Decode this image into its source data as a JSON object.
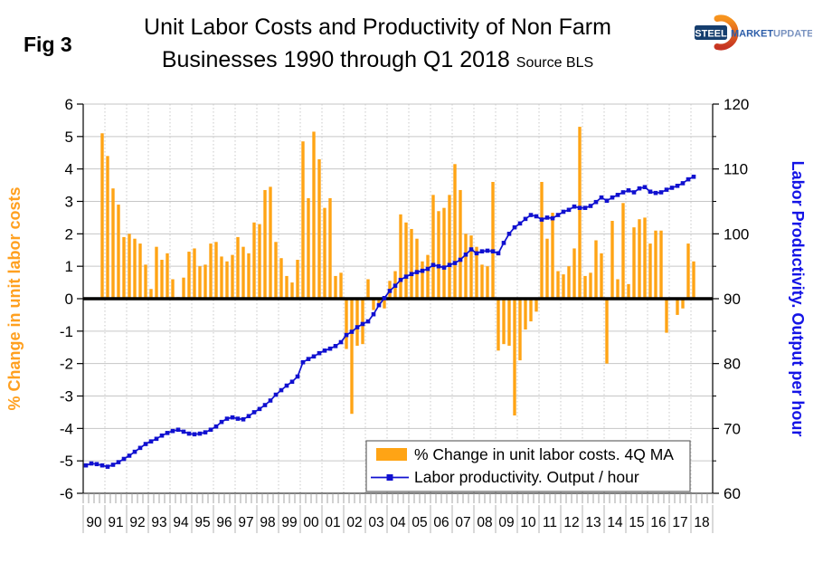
{
  "figure_label": "Fig 3",
  "title_line1": "Unit Labor Costs and Productivity of Non Farm",
  "title_line2": "Businesses 1990 through Q1 2018",
  "source_note": "Source BLS",
  "logo": {
    "steel": "STEEL",
    "market": "MARKET ",
    "update": "UPDATE"
  },
  "chart_data": {
    "type": "bar+line",
    "title": "Unit Labor Costs and Productivity of Non Farm Businesses 1990 through Q1 2018",
    "grid": true,
    "bar_color": "#FFA415",
    "line_color": "#1010D0",
    "left_axis": {
      "title": "% Change in unit labor costs",
      "color": "#FFA020",
      "min": -6,
      "max": 6,
      "tick_step": 1,
      "tick_labels": [
        "6",
        "5",
        "4",
        "3",
        "2",
        "1",
        "0",
        "-1",
        "-2",
        "-3",
        "-4",
        "-5",
        "-6"
      ]
    },
    "right_axis": {
      "title": "Labor Productivity. Output per hour",
      "color": "#1414E6",
      "min": 60,
      "max": 120,
      "tick_step": 10,
      "tick_labels": [
        "120",
        "110",
        "100",
        "90",
        "80",
        "70",
        "60"
      ]
    },
    "x_axis": {
      "year_labels": [
        "90",
        "91",
        "92",
        "93",
        "94",
        "95",
        "96",
        "97",
        "98",
        "99",
        "00",
        "01",
        "02",
        "03",
        "04",
        "05",
        "06",
        "07",
        "08",
        "09",
        "10",
        "11",
        "12",
        "13",
        "14",
        "15",
        "16",
        "17",
        "18"
      ],
      "quarters_per_year": 4,
      "start": "1990Q1",
      "end": "2018Q1"
    },
    "legend": [
      {
        "label": "% Change in unit labor costs. 4Q MA",
        "type": "bar",
        "color": "#FFA415"
      },
      {
        "label": "Labor productivity. Output / hour",
        "type": "line",
        "color": "#1010D0"
      }
    ],
    "series": [
      {
        "name": "% Change in unit labor costs. 4Q MA",
        "axis": "left",
        "type": "bar",
        "values": [
          null,
          null,
          null,
          5.1,
          4.4,
          3.4,
          2.9,
          1.9,
          2.0,
          1.85,
          1.7,
          1.05,
          0.3,
          1.6,
          1.2,
          1.4,
          0.6,
          0.05,
          0.65,
          1.45,
          1.55,
          1.0,
          1.05,
          1.7,
          1.75,
          1.3,
          1.15,
          1.35,
          1.9,
          1.6,
          1.4,
          2.35,
          2.3,
          3.35,
          3.45,
          1.75,
          1.25,
          0.7,
          0.5,
          1.2,
          4.85,
          3.1,
          5.15,
          4.3,
          2.8,
          3.1,
          0.7,
          0.8,
          -1.55,
          -3.55,
          -1.45,
          -1.4,
          0.6,
          -0.35,
          -0.2,
          -0.3,
          0.55,
          0.85,
          2.6,
          2.35,
          2.15,
          1.85,
          1.15,
          1.35,
          3.2,
          2.7,
          2.8,
          3.2,
          4.15,
          3.35,
          2.0,
          1.95,
          1.6,
          1.05,
          1.0,
          3.6,
          -1.6,
          -1.4,
          -1.45,
          -3.6,
          -1.9,
          -0.95,
          -0.7,
          -0.4,
          3.6,
          1.85,
          2.65,
          0.85,
          0.75,
          1.0,
          1.55,
          5.3,
          0.7,
          0.8,
          1.8,
          1.4,
          -2.0,
          2.4,
          0.6,
          2.95,
          0.45,
          2.2,
          2.45,
          2.5,
          1.7,
          2.1,
          2.1,
          -1.05,
          0.0,
          -0.5,
          -0.3,
          1.7,
          1.15
        ]
      },
      {
        "name": "Labor productivity. Output / hour",
        "axis": "right",
        "type": "line",
        "values": [
          64.3,
          64.6,
          64.5,
          64.3,
          64.1,
          64.4,
          64.8,
          65.3,
          65.8,
          66.4,
          67.0,
          67.6,
          68.0,
          68.4,
          68.9,
          69.3,
          69.6,
          69.8,
          69.5,
          69.2,
          69.1,
          69.2,
          69.4,
          69.8,
          70.3,
          71.0,
          71.5,
          71.7,
          71.5,
          71.4,
          71.9,
          72.5,
          73.0,
          73.6,
          74.3,
          75.2,
          75.9,
          76.6,
          77.2,
          78.0,
          80.2,
          80.7,
          81.1,
          81.6,
          82.0,
          82.3,
          82.7,
          83.3,
          84.4,
          84.9,
          85.6,
          86.1,
          86.5,
          87.6,
          89.0,
          90.1,
          91.2,
          92.0,
          92.9,
          93.4,
          93.8,
          94.1,
          94.3,
          94.6,
          95.2,
          95.0,
          94.8,
          95.2,
          95.5,
          96.0,
          96.8,
          97.6,
          97.0,
          97.3,
          97.4,
          97.3,
          97.0,
          98.6,
          100.0,
          101.0,
          101.6,
          102.3,
          102.9,
          102.7,
          102.2,
          102.5,
          102.4,
          102.9,
          103.4,
          103.7,
          104.2,
          104.0,
          104.0,
          104.3,
          104.9,
          105.6,
          105.1,
          105.6,
          106.0,
          106.4,
          106.7,
          106.4,
          107.0,
          107.2,
          106.5,
          106.3,
          106.4,
          106.8,
          107.1,
          107.4,
          107.8,
          108.4,
          108.8
        ]
      }
    ]
  }
}
